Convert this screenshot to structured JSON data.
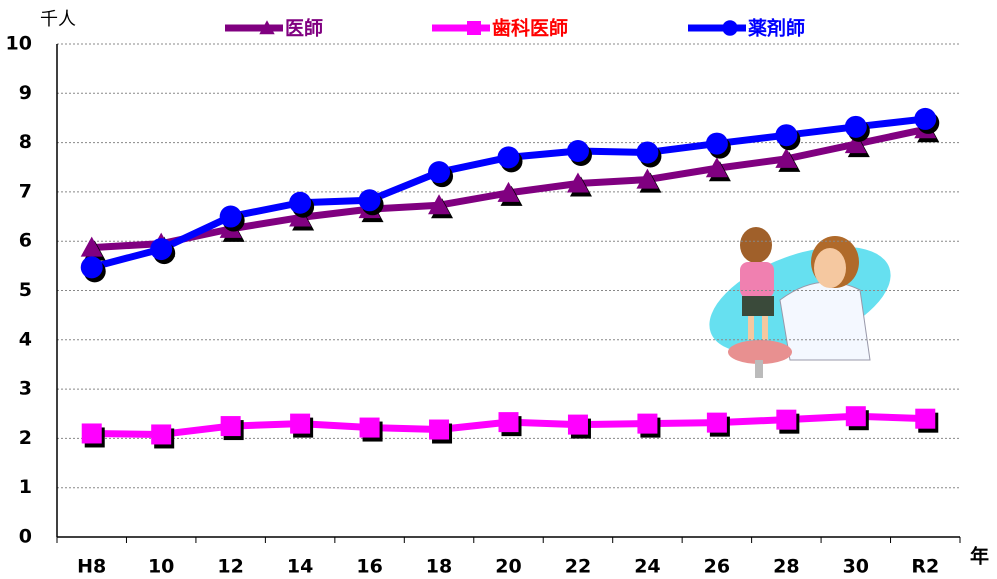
{
  "chart_data": {
    "type": "line",
    "y_unit": "千人",
    "x_label": "年",
    "categories": [
      "H8",
      "10",
      "12",
      "14",
      "16",
      "18",
      "20",
      "22",
      "24",
      "26",
      "28",
      "30",
      "R2"
    ],
    "series": [
      {
        "name": "医師",
        "color": "#800080",
        "label_color": "#800080",
        "marker": "triangle",
        "values": [
          5.87,
          5.95,
          6.25,
          6.48,
          6.65,
          6.73,
          6.98,
          7.17,
          7.25,
          7.48,
          7.67,
          7.97,
          8.27
        ]
      },
      {
        "name": "歯科医師",
        "color": "#ff00ff",
        "label_color": "#ff0000",
        "marker": "square",
        "values": [
          2.1,
          2.08,
          2.25,
          2.3,
          2.22,
          2.18,
          2.33,
          2.28,
          2.3,
          2.32,
          2.38,
          2.45,
          2.4
        ]
      },
      {
        "name": "薬剤師",
        "color": "#0000ff",
        "label_color": "#0000ff",
        "marker": "circle",
        "values": [
          5.47,
          5.84,
          6.5,
          6.78,
          6.83,
          7.4,
          7.7,
          7.83,
          7.8,
          7.98,
          8.15,
          8.32,
          8.48
        ]
      }
    ],
    "ylim": [
      0,
      10
    ],
    "yticks": [
      0,
      1,
      2,
      3,
      4,
      5,
      6,
      7,
      8,
      9,
      10
    ],
    "grid": true
  }
}
